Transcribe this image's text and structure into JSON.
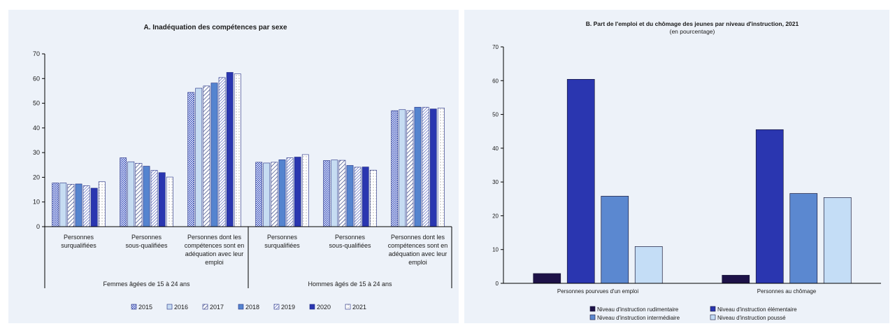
{
  "chart_data": [
    {
      "type": "bar",
      "title": "A. Inadéquation des compétences par sexe",
      "ylim": [
        0,
        70
      ],
      "yticks": [
        0,
        10,
        20,
        30,
        40,
        50,
        60,
        70
      ],
      "groups": [
        "Femmes âgées de 15 à 24 ans",
        "Hommes âgés de 15 à 24 ans"
      ],
      "categories": [
        [
          "Personnes",
          "surqualifiées"
        ],
        [
          "Personnes",
          "sous-qualifiées"
        ],
        [
          "Personnes dont les",
          "compétences sont en",
          "adéquation avec leur",
          "emploi"
        ],
        [
          "Personnes",
          "surqualifiées"
        ],
        [
          "Personnes",
          "sous-qualifiées"
        ],
        [
          "Personnes dont les",
          "compétences sont en",
          "adéquation avec leur",
          "emploi"
        ]
      ],
      "series": [
        {
          "name": "2015",
          "values": [
            17.7,
            27.9,
            54.4,
            26.1,
            26.8,
            47.0
          ]
        },
        {
          "name": "2016",
          "values": [
            17.7,
            26.3,
            56.1,
            25.8,
            27.0,
            47.4
          ]
        },
        {
          "name": "2017",
          "values": [
            17.2,
            25.7,
            57.0,
            26.1,
            26.9,
            47.0
          ]
        },
        {
          "name": "2018",
          "values": [
            17.3,
            24.5,
            58.2,
            27.1,
            24.8,
            48.4
          ]
        },
        {
          "name": "2019",
          "values": [
            16.6,
            22.8,
            60.4,
            27.9,
            24.1,
            48.4
          ]
        },
        {
          "name": "2020",
          "values": [
            15.6,
            21.9,
            62.5,
            28.2,
            24.2,
            47.7
          ]
        },
        {
          "name": "2021",
          "values": [
            18.2,
            20.1,
            61.9,
            29.2,
            22.9,
            48.1
          ]
        }
      ],
      "colors": [
        "#4c63c6",
        "#c6dcf2",
        "#ffffff",
        "#5584cf",
        "#ffffff",
        "#2a36b0",
        "#ffffff"
      ]
    },
    {
      "type": "bar",
      "title": "B. Part de l'emploi et du chômage des jeunes par niveau d'instruction, 2021",
      "subtitle": "(en pourcentage)",
      "ylim": [
        0,
        70
      ],
      "yticks": [
        0,
        10,
        20,
        30,
        40,
        50,
        60,
        70
      ],
      "categories": [
        "Personnes pourvues d'un emploi",
        "Personnes au chômage"
      ],
      "series": [
        {
          "name": "Niveau d'instruction rudimentaire",
          "values": [
            2.9,
            2.4
          ]
        },
        {
          "name": "Niveau d'instruction élémentaire",
          "values": [
            60.4,
            45.5
          ]
        },
        {
          "name": "Niveau d'instruction intermédiaire",
          "values": [
            25.8,
            26.6
          ]
        },
        {
          "name": "Niveau d'instruction poussé",
          "values": [
            10.9,
            25.4
          ]
        }
      ],
      "colors": [
        "#1d1248",
        "#2a36b0",
        "#5b88d0",
        "#c4ddf6"
      ]
    }
  ]
}
